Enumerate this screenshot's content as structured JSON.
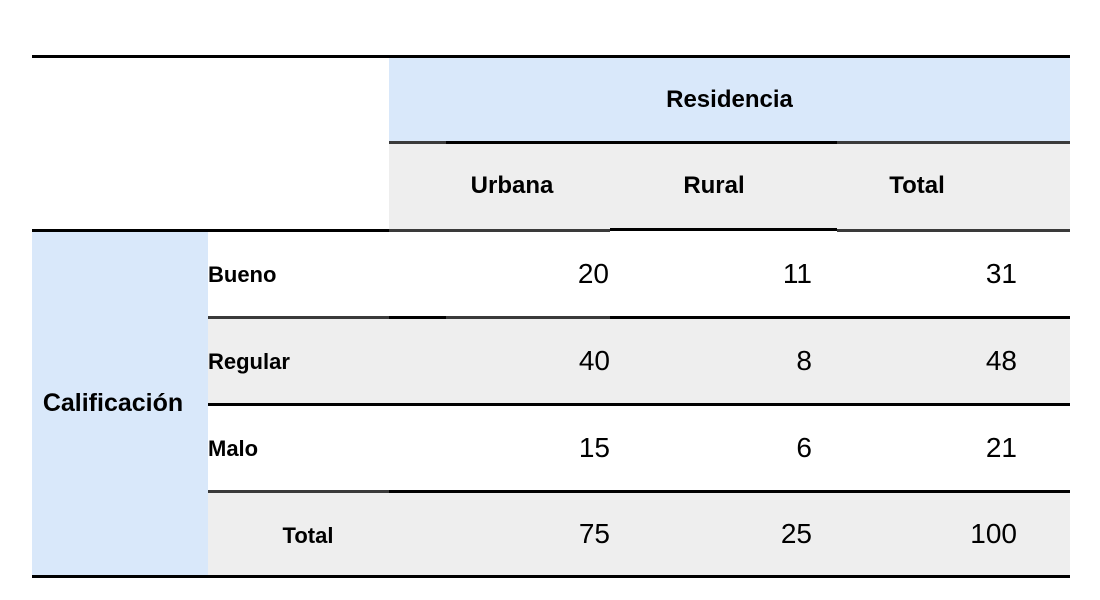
{
  "table": {
    "column_group_header": "Residencia",
    "row_group_header": "Calificación",
    "columns": [
      "Urbana",
      "Rural",
      "Total"
    ],
    "rows": [
      {
        "label": "Bueno",
        "values": [
          "20",
          "11",
          "31"
        ]
      },
      {
        "label": "Regular",
        "values": [
          "40",
          "8",
          "48"
        ]
      },
      {
        "label": "Malo",
        "values": [
          "15",
          "6",
          "21"
        ]
      },
      {
        "label": "Total",
        "values": [
          "75",
          "25",
          "100"
        ]
      }
    ]
  },
  "colors": {
    "header_blue": "#d9e8fa",
    "band_gray": "#eeeeee",
    "rule": "#000000"
  }
}
